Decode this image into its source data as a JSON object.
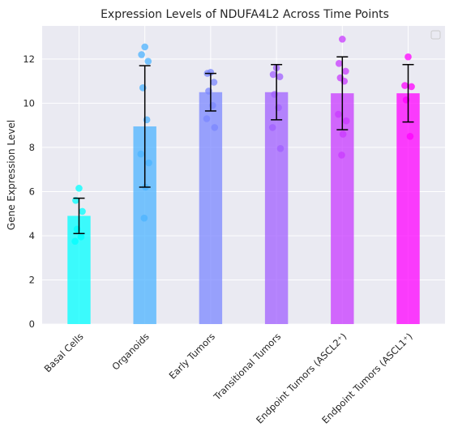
{
  "chart_data": {
    "type": "bar",
    "title": "Expression Levels of NDUFA4L2 Across Time Points",
    "xlabel": "",
    "ylabel": "Gene Expression Level",
    "ylim": [
      0,
      13.5
    ],
    "yticks": [
      0,
      2,
      4,
      6,
      8,
      10,
      12
    ],
    "grid": true,
    "legend": "top-right (empty)",
    "categories": [
      "Basal Cells",
      "Organoids",
      "Early Tumors",
      "Transitional Tumors",
      "Endpoint Tumors (ASCL2⁺)",
      "Endpoint Tumors (ASCL1⁺)"
    ],
    "values": [
      4.9,
      8.95,
      10.5,
      10.5,
      10.45,
      10.45
    ],
    "error": [
      0.8,
      2.75,
      0.85,
      1.25,
      1.65,
      1.3
    ],
    "colors": [
      "#00ffff",
      "#4cb3ff",
      "#7b87ff",
      "#a05fff",
      "#c839ff",
      "#ff00ff"
    ],
    "points": [
      [
        6.15,
        5.6,
        5.1,
        4.3,
        3.95,
        3.75
      ],
      [
        12.55,
        12.2,
        11.9,
        10.7,
        9.25,
        7.7,
        7.3,
        6.2,
        4.8
      ],
      [
        11.4,
        11.35,
        10.95,
        10.55,
        9.9,
        9.3,
        8.9
      ],
      [
        11.6,
        11.3,
        11.2,
        10.4,
        9.8,
        8.9,
        7.95
      ],
      [
        12.9,
        11.8,
        11.45,
        11.15,
        11.0,
        9.5,
        9.2,
        8.6,
        7.65
      ],
      [
        12.1,
        10.8,
        10.75,
        10.15,
        8.5
      ]
    ]
  }
}
